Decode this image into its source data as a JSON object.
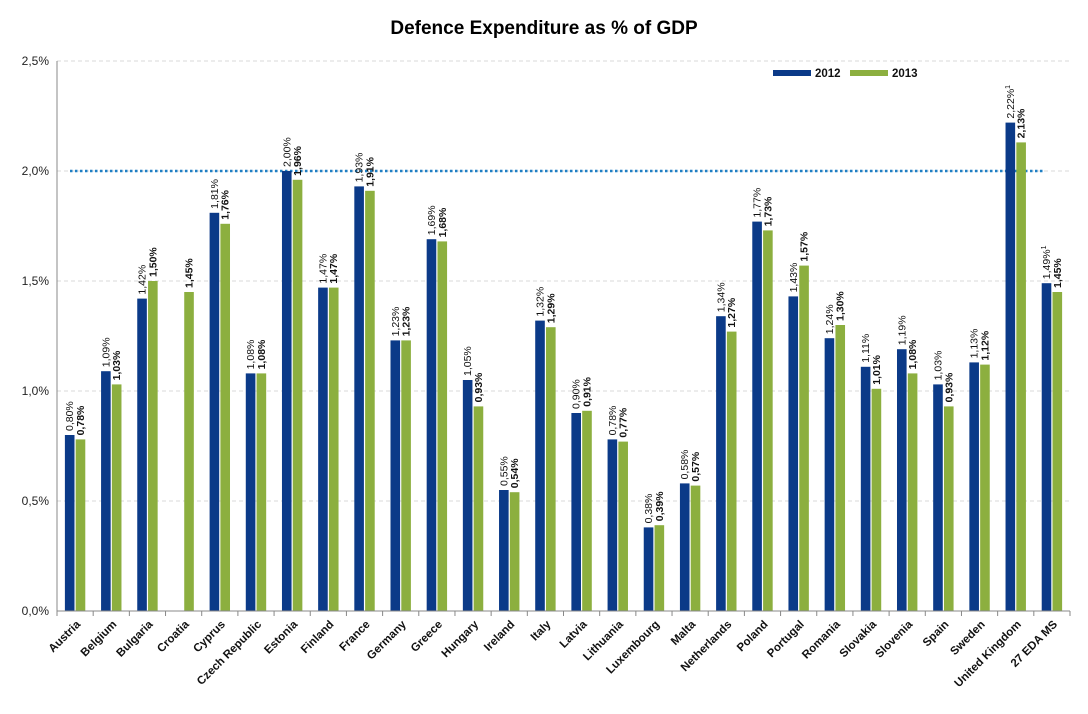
{
  "chart_data": {
    "type": "bar",
    "title": "Defence Expenditure as % of GDP",
    "xlabel": "",
    "ylabel": "",
    "ylim": [
      0,
      2.5
    ],
    "y_ticks": [
      "0,0%",
      "0,5%",
      "1,0%",
      "1,5%",
      "2,0%",
      "2,5%"
    ],
    "reference_line": {
      "value": 2.0,
      "style": "dotted"
    },
    "grid": true,
    "legend_position": "top-right",
    "categories": [
      "Austria",
      "Belgium",
      "Bulgaria",
      "Croatia",
      "Cyprus",
      "Czech Republic",
      "Estonia",
      "Finland",
      "France",
      "Germany",
      "Greece",
      "Hungary",
      "Ireland",
      "Italy",
      "Latvia",
      "Lithuania",
      "Luxembourg",
      "Malta",
      "Netherlands",
      "Poland",
      "Portugal",
      "Romania",
      "Slovakia",
      "Slovenia",
      "Spain",
      "Sweden",
      "United Kingdom",
      "27 EDA MS"
    ],
    "series": [
      {
        "name": "2012",
        "color": "#0B3A88",
        "values": [
          0.8,
          1.09,
          1.42,
          null,
          1.81,
          1.08,
          2.0,
          1.47,
          1.93,
          1.23,
          1.69,
          1.05,
          0.55,
          1.32,
          0.9,
          0.78,
          0.38,
          0.58,
          1.34,
          1.77,
          1.43,
          1.24,
          1.11,
          1.19,
          1.03,
          1.13,
          2.22,
          1.49
        ],
        "labels": [
          "0,80%",
          "1,09%",
          "1,42%",
          "",
          "1,81%",
          "1,08%",
          "2,00%",
          "1,47%",
          "1,93%",
          "1,23%",
          "1,69%",
          "1,05%",
          "0,55%",
          "1,32%",
          "0,90%",
          "0,78%",
          "0,38%",
          "0,58%",
          "1,34%",
          "1,77%",
          "1,43%",
          "1,24%",
          "1,11%",
          "1,19%",
          "1,03%",
          "1,13%",
          "2,22%",
          "1,49%"
        ],
        "notes": [
          "",
          "",
          "",
          "",
          "",
          "",
          "",
          "",
          "",
          "",
          "",
          "",
          "",
          "",
          "",
          "",
          "",
          "",
          "",
          "",
          "",
          "",
          "",
          "",
          "",
          "",
          "1",
          "1"
        ]
      },
      {
        "name": "2013",
        "color": "#8CAF3F",
        "values": [
          0.78,
          1.03,
          1.5,
          1.45,
          1.76,
          1.08,
          1.96,
          1.47,
          1.91,
          1.23,
          1.68,
          0.93,
          0.54,
          1.29,
          0.91,
          0.77,
          0.39,
          0.57,
          1.27,
          1.73,
          1.57,
          1.3,
          1.01,
          1.08,
          0.93,
          1.12,
          2.13,
          1.45
        ],
        "labels": [
          "0,78%",
          "1,03%",
          "1,50%",
          "1,45%",
          "1,76%",
          "1,08%",
          "1,96%",
          "1,47%",
          "1,91%",
          "1,23%",
          "1,68%",
          "0,93%",
          "0,54%",
          "1,29%",
          "0,91%",
          "0,77%",
          "0,39%",
          "0,57%",
          "1,27%",
          "1,73%",
          "1,57%",
          "1,30%",
          "1,01%",
          "1,08%",
          "0,93%",
          "1,12%",
          "2,13%",
          "1,45%"
        ],
        "notes": [
          "",
          "",
          "",
          "",
          "",
          "",
          "",
          "",
          "",
          "",
          "",
          "",
          "",
          "",
          "",
          "",
          "",
          "",
          "",
          "",
          "",
          "",
          "",
          "",
          "",
          "",
          "",
          ""
        ]
      }
    ]
  }
}
